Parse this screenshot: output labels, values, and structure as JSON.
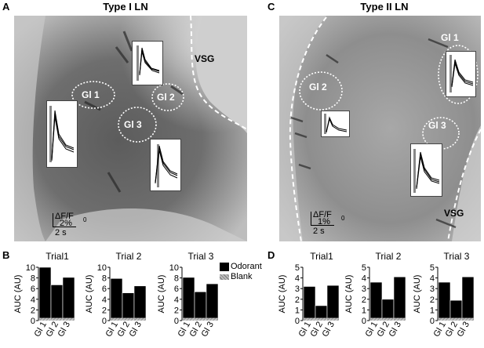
{
  "panels": {
    "A": {
      "letter": "A",
      "title": "Type I LN",
      "vsg": "VSG",
      "glomeruli": [
        "Gl 1",
        "Gl 2",
        "Gl 3"
      ],
      "scale_y": "ΔF/F",
      "scale_y_sub": "0",
      "scale_y_val": "2%",
      "scale_x": "2 s"
    },
    "B": {
      "letter": "B"
    },
    "C": {
      "letter": "C",
      "title": "Type II LN",
      "vsg": "VSG",
      "glomeruli": [
        "Gl 1",
        "Gl 2",
        "Gl 3"
      ],
      "scale_y": "ΔF/F",
      "scale_y_sub": "0",
      "scale_y_val": "1%",
      "scale_x": "2 s"
    },
    "D": {
      "letter": "D"
    }
  },
  "legend": {
    "odorant": "Odorant",
    "blank": "Blank"
  },
  "colors": {
    "odorant": "#000000",
    "blank": "#9a9a9a",
    "dashed_outline": "#ffffff"
  },
  "chart_data": [
    {
      "type": "bar",
      "panel": "B",
      "title": "Trial1",
      "ylabel": "AUC (AU)",
      "categories": [
        "Gl 1",
        "Gl 2",
        "Gl 3"
      ],
      "ylim": [
        0,
        10
      ],
      "yticks": [
        0,
        2,
        4,
        6,
        8,
        10
      ],
      "series": [
        {
          "name": "Odorant",
          "values": [
            10,
            6.7,
            8.1
          ]
        },
        {
          "name": "Blank",
          "values": [
            0.5,
            0.5,
            0.5
          ]
        }
      ]
    },
    {
      "type": "bar",
      "panel": "B",
      "title": "Trial 2",
      "ylabel": "AUC (AU)",
      "categories": [
        "Gl 1",
        "Gl 2",
        "Gl 3"
      ],
      "ylim": [
        0,
        10
      ],
      "yticks": [
        0,
        2,
        4,
        6,
        8,
        10
      ],
      "series": [
        {
          "name": "Odorant",
          "values": [
            7.9,
            5.2,
            6.5
          ]
        },
        {
          "name": "Blank",
          "values": [
            0.5,
            0.5,
            0.5
          ]
        }
      ]
    },
    {
      "type": "bar",
      "panel": "B",
      "title": "Trial 3",
      "ylabel": "AUC (AU)",
      "categories": [
        "Gl 1",
        "Gl 2",
        "Gl 3"
      ],
      "ylim": [
        0,
        10
      ],
      "yticks": [
        0,
        2,
        4,
        6,
        8,
        10
      ],
      "series": [
        {
          "name": "Odorant",
          "values": [
            8.1,
            5.4,
            6.9
          ]
        },
        {
          "name": "Blank",
          "values": [
            0.5,
            0.5,
            0.5
          ]
        }
      ]
    },
    {
      "type": "bar",
      "panel": "D",
      "title": "Trial1",
      "ylabel": "AUC (AU)",
      "categories": [
        "Gl 1",
        "Gl 2",
        "Gl 3"
      ],
      "ylim": [
        0,
        5
      ],
      "yticks": [
        0,
        1,
        2,
        3,
        4,
        5
      ],
      "series": [
        {
          "name": "Odorant",
          "values": [
            3.2,
            1.4,
            3.3
          ]
        },
        {
          "name": "Blank",
          "values": [
            0.25,
            0.25,
            0.25
          ]
        }
      ]
    },
    {
      "type": "bar",
      "panel": "D",
      "title": "Trial 2",
      "ylabel": "AUC (AU)",
      "categories": [
        "Gl 1",
        "Gl 2",
        "Gl 3"
      ],
      "ylim": [
        0,
        5
      ],
      "yticks": [
        0,
        1,
        2,
        3,
        4,
        5
      ],
      "series": [
        {
          "name": "Odorant",
          "values": [
            3.6,
            2.0,
            4.1
          ]
        },
        {
          "name": "Blank",
          "values": [
            0.25,
            0.25,
            0.25
          ]
        }
      ]
    },
    {
      "type": "bar",
      "panel": "D",
      "title": "Trial 3",
      "ylabel": "AUC (AU)",
      "categories": [
        "Gl 1",
        "Gl 2",
        "Gl 3"
      ],
      "ylim": [
        0,
        5
      ],
      "yticks": [
        0,
        1,
        2,
        3,
        4,
        5
      ],
      "series": [
        {
          "name": "Odorant",
          "values": [
            3.6,
            1.9,
            4.1
          ]
        },
        {
          "name": "Blank",
          "values": [
            0.25,
            0.25,
            0.25
          ]
        }
      ]
    }
  ]
}
